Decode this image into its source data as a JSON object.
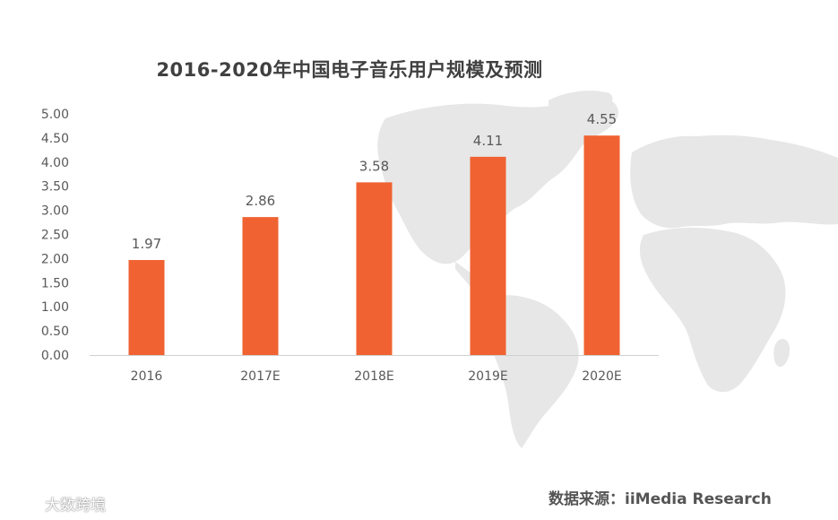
{
  "chart_data": {
    "type": "bar",
    "title": "2016-2020年中国电子音乐用户规模及预测",
    "categories": [
      "2016",
      "2017E",
      "2018E",
      "2019E",
      "2020E"
    ],
    "values": [
      1.97,
      2.86,
      3.58,
      4.11,
      4.55
    ],
    "data_labels": [
      "1.97",
      "2.86",
      "3.58",
      "4.11",
      "4.55"
    ],
    "ylim": [
      0,
      5
    ],
    "yticks": [
      "0.00",
      "0.50",
      "1.00",
      "1.50",
      "2.00",
      "2.50",
      "3.00",
      "3.50",
      "4.00",
      "4.50",
      "5.00"
    ],
    "bar_color": "#f06232",
    "grid": false,
    "legend": "none"
  },
  "source": "数据来源：iiMedia Research",
  "watermark": {
    "text": "大数跨境",
    "icon": "weibo-logo-icon"
  },
  "colors": {
    "map": "#e6e6e6",
    "text": "#595959"
  }
}
